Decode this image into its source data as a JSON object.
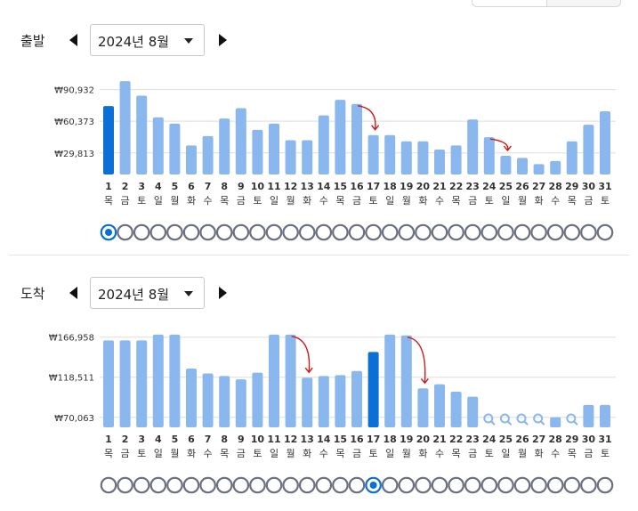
{
  "colors": {
    "bar": "#8ab8ee",
    "bar_selected": "#0b6fd6",
    "grid": "#dddddd",
    "radio": "#6b6f80",
    "radio_selected": "#0b6fd6",
    "annotation": "#d01919"
  },
  "icons": [
    "caret-left-icon",
    "caret-right-icon",
    "dropdown-caret-icon",
    "search-icon",
    "radio-icon"
  ],
  "departure": {
    "label": "출발",
    "month_value": "2024년 8월",
    "selected_day": 1,
    "chart_data": {
      "type": "bar",
      "categories": [
        "1",
        "2",
        "3",
        "4",
        "5",
        "6",
        "7",
        "8",
        "9",
        "10",
        "11",
        "12",
        "13",
        "14",
        "15",
        "16",
        "17",
        "18",
        "19",
        "20",
        "21",
        "22",
        "23",
        "24",
        "25",
        "26",
        "27",
        "28",
        "29",
        "30",
        "31"
      ],
      "weekdays": [
        "목",
        "금",
        "토",
        "일",
        "월",
        "화",
        "수",
        "목",
        "금",
        "토",
        "일",
        "월",
        "화",
        "수",
        "목",
        "금",
        "토",
        "일",
        "월",
        "화",
        "수",
        "목",
        "금",
        "토",
        "일",
        "월",
        "화",
        "수",
        "목",
        "금",
        "토"
      ],
      "values": [
        75000,
        99000,
        85000,
        64000,
        58000,
        37000,
        46000,
        63000,
        73000,
        52000,
        58000,
        42000,
        42000,
        66000,
        81000,
        77000,
        47000,
        47000,
        41000,
        41000,
        33000,
        37000,
        62000,
        45000,
        27000,
        25000,
        19000,
        22000,
        41000,
        57000,
        70000
      ],
      "unavailable": [],
      "yticks": [
        {
          "value": 90932,
          "label": "₩90,932"
        },
        {
          "value": 60373,
          "label": "₩60,373"
        },
        {
          "value": 29813,
          "label": "₩29,813"
        }
      ],
      "ylim": [
        9000,
        100000
      ],
      "annotations": [
        {
          "from": 16,
          "to": 17
        },
        {
          "from": 24,
          "to": 25
        }
      ]
    }
  },
  "arrival": {
    "label": "도착",
    "month_value": "2024년 8월",
    "selected_day": 17,
    "chart_data": {
      "type": "bar",
      "categories": [
        "1",
        "2",
        "3",
        "4",
        "5",
        "6",
        "7",
        "8",
        "9",
        "10",
        "11",
        "12",
        "13",
        "14",
        "15",
        "16",
        "17",
        "18",
        "19",
        "20",
        "21",
        "22",
        "23",
        "24",
        "25",
        "26",
        "27",
        "28",
        "29",
        "30",
        "31"
      ],
      "weekdays": [
        "목",
        "금",
        "토",
        "일",
        "월",
        "화",
        "수",
        "목",
        "금",
        "토",
        "일",
        "월",
        "화",
        "수",
        "목",
        "금",
        "토",
        "일",
        "월",
        "화",
        "수",
        "목",
        "금",
        "토",
        "일",
        "월",
        "화",
        "수",
        "목",
        "금",
        "토"
      ],
      "values": [
        163000,
        163000,
        163000,
        170000,
        170000,
        129000,
        123000,
        120000,
        116000,
        124000,
        170000,
        170000,
        118000,
        120000,
        121000,
        126000,
        149000,
        170000,
        169000,
        105000,
        110000,
        101000,
        95000,
        null,
        null,
        null,
        null,
        70063,
        null,
        85000,
        85000
      ],
      "unavailable": [
        24,
        25,
        26,
        27,
        29
      ],
      "yticks": [
        {
          "value": 166958,
          "label": "₩166,958"
        },
        {
          "value": 118511,
          "label": "₩118,511"
        },
        {
          "value": 70063,
          "label": "₩70,063"
        }
      ],
      "ylim": [
        58000,
        172000
      ],
      "annotations": [
        {
          "from": 12,
          "to": 13
        },
        {
          "from": 19,
          "to": 20
        }
      ]
    }
  }
}
